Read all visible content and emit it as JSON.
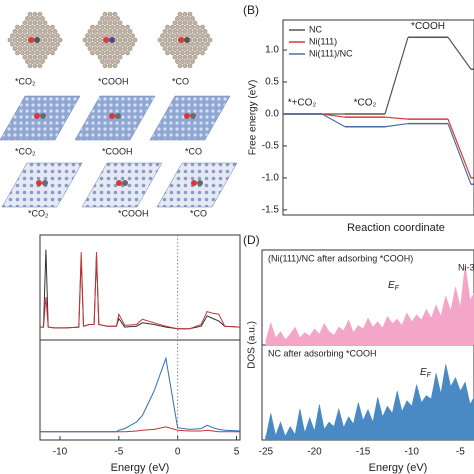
{
  "panel_a": {
    "labels": [
      [
        "*CO₂",
        "*COOH",
        "*CO"
      ],
      [
        "*CO₂",
        "*COOH",
        "*CO"
      ],
      [
        "*CO₂",
        "*COOH",
        "*CO"
      ]
    ]
  },
  "chart_data": [
    {
      "type": "step",
      "panel_label": "(B)",
      "ylabel": "Free energy (eV)",
      "xlabel": "Reaction coordinate",
      "categories": [
        "*+CO₂",
        "*CO₂",
        "*COOH",
        null
      ],
      "series": [
        {
          "name": "NC",
          "color": "#555555",
          "values": [
            0,
            0,
            1.2,
            0.7
          ]
        },
        {
          "name": "Ni(111)",
          "color": "#d43c3c",
          "values": [
            0,
            -0.05,
            -0.08,
            -1.0
          ]
        },
        {
          "name": "Ni(111)/NC",
          "color": "#4a6fa5",
          "values": [
            0,
            -0.2,
            -0.15,
            -1.1
          ]
        }
      ],
      "ylim": [
        -1.58,
        1.47
      ],
      "yticks": [
        {
          "value": -1.5,
          "label": "-1.5"
        },
        {
          "value": -1,
          "label": "-1.0"
        },
        -0.5,
        {
          "value": 0,
          "label": "0.0"
        },
        0.5,
        {
          "value": 1,
          "label": "1.0"
        }
      ],
      "legend": "upper left"
    },
    {
      "type": "line",
      "xlabel": "Energy (eV)",
      "x": [
        -11.7,
        -11.4,
        -11.2,
        -11.0,
        -10.5,
        -9.5,
        -8.4,
        -8.2,
        -8.0,
        -7.5,
        -7.1,
        -6.9,
        -6.7,
        -6,
        -5.2,
        -5.0,
        -4.5,
        -3.5,
        -3,
        -2,
        -1,
        0,
        1,
        2,
        2.5,
        3,
        3.5,
        4,
        5.3
      ],
      "series": [
        {
          "color": "#333333",
          "panel": "top",
          "values": [
            0.5,
            0.5,
            9.5,
            0.5,
            0.4,
            0.4,
            0.5,
            8.5,
            0.6,
            0.8,
            0.8,
            8.8,
            0.8,
            0.6,
            0.6,
            1.5,
            0.5,
            0.6,
            1.0,
            0.8,
            0.5,
            0.3,
            0.3,
            0.6,
            1.8,
            1.5,
            1.2,
            0.6,
            0.5
          ]
        },
        {
          "color": "#c83232",
          "panel": "top",
          "values": [
            0.5,
            0.5,
            4,
            0.5,
            0.4,
            0.4,
            0.5,
            9.2,
            0.6,
            0.8,
            0.8,
            9.2,
            0.8,
            0.6,
            0.6,
            2,
            0.7,
            0.8,
            1.4,
            1.0,
            0.6,
            0.3,
            0.3,
            0.8,
            2.3,
            2.1,
            2.0,
            0.6,
            0.5
          ]
        },
        {
          "color": "#c83232",
          "panel": "bottom",
          "values": [
            0,
            0,
            0,
            0,
            0,
            0,
            0,
            0,
            0,
            0,
            0,
            0,
            0,
            0,
            0,
            0,
            0,
            0.1,
            0.2,
            0.3,
            0.6,
            0.2,
            0.1,
            0.1,
            0.2,
            0.1,
            0,
            0,
            0
          ]
        },
        {
          "color": "#2f6fb5",
          "panel": "bottom",
          "values": [
            0,
            0,
            0,
            0,
            0,
            0,
            0,
            0,
            0,
            0,
            0,
            0,
            0,
            0,
            0,
            0.2,
            0.4,
            1.2,
            2,
            5,
            9,
            0.5,
            0.3,
            0.4,
            0.8,
            0.5,
            0.3,
            0.2,
            0.1
          ]
        }
      ],
      "xlim": [
        -11.7,
        5.3
      ],
      "xticks": [
        -10,
        -5,
        0,
        5
      ],
      "ylim": [
        -1,
        10.5
      ]
    },
    {
      "type": "area",
      "panel_label": "(D)",
      "xlabel": "Energy (eV)",
      "ylabel": "DOS (a.u.)",
      "x": [
        -25,
        -24.5,
        -24,
        -23.5,
        -23,
        -22.5,
        -22,
        -21.5,
        -21,
        -20.5,
        -20,
        -19.5,
        -19,
        -18.5,
        -18,
        -17.5,
        -17,
        -16.5,
        -16,
        -15.5,
        -15,
        -14.5,
        -14,
        -13.5,
        -13,
        -12.5,
        -12,
        -11.5,
        -11,
        -10.5,
        -10,
        -9.5,
        -9,
        -8.5,
        -8,
        -7.5,
        -7,
        -6.5,
        -6,
        -5.5,
        -5,
        -4.5,
        -4,
        -3.5
      ],
      "series": [
        {
          "color": "#f4a6c8",
          "panel": "top",
          "label": "(Ni(111)/NC after adsorbing *COOH)",
          "values": [
            0.5,
            2.5,
            0.8,
            1.5,
            0.6,
            1.2,
            2,
            0.8,
            1.4,
            1,
            1.8,
            1.2,
            2.4,
            1.5,
            1.1,
            2,
            1.6,
            2.8,
            1.4,
            2.2,
            1.8,
            3,
            2,
            2.6,
            1.9,
            3.2,
            2.4,
            2.9,
            2.2,
            3.6,
            2.6,
            3.4,
            2.8,
            4,
            3,
            4.5,
            3.2,
            5.5,
            3.8,
            6.5,
            4.2,
            9,
            5,
            6
          ]
        },
        {
          "color": "#4a8ac4",
          "panel": "bottom",
          "label": "NC after adsorbing *COOH",
          "values": [
            0.3,
            3,
            0.5,
            2,
            0.4,
            1.5,
            0.6,
            3.5,
            0.8,
            2.5,
            1,
            4,
            1.2,
            2,
            1.5,
            3.5,
            1.4,
            2.6,
            1.8,
            4.2,
            2.2,
            3.4,
            2,
            4.8,
            2.6,
            3.8,
            3,
            5.5,
            3.2,
            4.4,
            3.8,
            6.2,
            4.2,
            5,
            4.6,
            7.5,
            5.2,
            8.5,
            6,
            7,
            5.5,
            6.5,
            4,
            5
          ]
        }
      ],
      "fermi_label": {
        "main": "E",
        "sub": "F"
      },
      "peak_label": "Ni-3",
      "xlim": [
        -25.4,
        -3.6
      ],
      "xticks": [
        -25,
        -20,
        -15,
        -10,
        -5
      ],
      "ylim": [
        0,
        10
      ]
    }
  ]
}
